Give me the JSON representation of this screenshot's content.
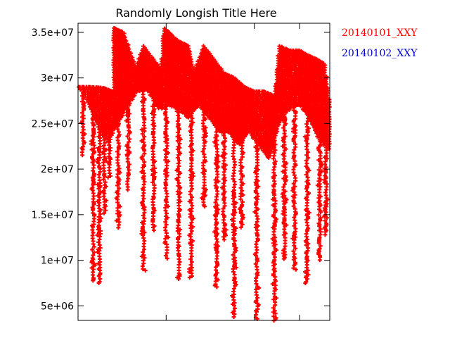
{
  "chart_data": {
    "type": "scatter",
    "title": "Randomly Longish Title Here",
    "xlabel": "",
    "ylabel": "",
    "xlim": [
      0,
      1
    ],
    "ylim": [
      3400000,
      36000000
    ],
    "xticks": [
      0,
      0.35,
      0.7,
      0.88
    ],
    "yticks": [
      5000000,
      10000000,
      15000000,
      20000000,
      25000000,
      30000000,
      35000000
    ],
    "ytick_labels": [
      "5e+06",
      "1e+07",
      "1.5e+07",
      "2e+07",
      "2.5e+07",
      "3e+07",
      "3.5e+07"
    ],
    "grid": false,
    "legend_position": "outside-right-top",
    "colors": {
      "series1": "#ff0000",
      "series2": "#0000cc"
    },
    "series": [
      {
        "name": "20140101_XXY",
        "marker": "plus",
        "upper": [
          [
            0.0,
            29000000
          ],
          [
            0.05,
            29000000
          ],
          [
            0.1,
            28900000
          ],
          [
            0.14,
            28500000
          ],
          [
            0.14,
            35500000
          ],
          [
            0.18,
            35000000
          ],
          [
            0.2,
            33500000
          ],
          [
            0.23,
            31000000
          ],
          [
            0.26,
            33500000
          ],
          [
            0.3,
            32000000
          ],
          [
            0.33,
            31000000
          ],
          [
            0.34,
            35500000
          ],
          [
            0.38,
            34500000
          ],
          [
            0.4,
            34000000
          ],
          [
            0.44,
            33500000
          ],
          [
            0.46,
            30500000
          ],
          [
            0.5,
            33500000
          ],
          [
            0.54,
            32000000
          ],
          [
            0.58,
            30500000
          ],
          [
            0.62,
            30000000
          ],
          [
            0.66,
            29000000
          ],
          [
            0.7,
            28500000
          ],
          [
            0.74,
            28500000
          ],
          [
            0.78,
            28000000
          ],
          [
            0.8,
            33500000
          ],
          [
            0.84,
            33000000
          ],
          [
            0.88,
            33000000
          ],
          [
            0.91,
            32500000
          ],
          [
            0.95,
            32000000
          ],
          [
            0.98,
            31500000
          ],
          [
            1.0,
            27000000
          ]
        ],
        "lower": [
          [
            0.0,
            29000000
          ],
          [
            0.03,
            28000000
          ],
          [
            0.06,
            26000000
          ],
          [
            0.09,
            24000000
          ],
          [
            0.12,
            23000000
          ],
          [
            0.14,
            24000000
          ],
          [
            0.16,
            25000000
          ],
          [
            0.2,
            27000000
          ],
          [
            0.24,
            28500000
          ],
          [
            0.28,
            28500000
          ],
          [
            0.32,
            26500000
          ],
          [
            0.36,
            27000000
          ],
          [
            0.4,
            26500000
          ],
          [
            0.44,
            25500000
          ],
          [
            0.48,
            27000000
          ],
          [
            0.52,
            25500000
          ],
          [
            0.56,
            24000000
          ],
          [
            0.6,
            24000000
          ],
          [
            0.64,
            22500000
          ],
          [
            0.68,
            24000000
          ],
          [
            0.72,
            22500000
          ],
          [
            0.76,
            21000000
          ],
          [
            0.8,
            25000000
          ],
          [
            0.84,
            26500000
          ],
          [
            0.88,
            27000000
          ],
          [
            0.92,
            25500000
          ],
          [
            0.96,
            23000000
          ],
          [
            1.0,
            22000000
          ]
        ],
        "dips": [
          [
            0.02,
            21500000
          ],
          [
            0.06,
            7500000
          ],
          [
            0.085,
            7500000
          ],
          [
            0.105,
            15000000
          ],
          [
            0.125,
            19000000
          ],
          [
            0.16,
            13500000
          ],
          [
            0.2,
            17500000
          ],
          [
            0.26,
            9000000
          ],
          [
            0.3,
            13000000
          ],
          [
            0.35,
            10000000
          ],
          [
            0.4,
            7700000
          ],
          [
            0.45,
            8000000
          ],
          [
            0.5,
            16000000
          ],
          [
            0.55,
            7000000
          ],
          [
            0.58,
            12000000
          ],
          [
            0.62,
            3500000
          ],
          [
            0.65,
            13500000
          ],
          [
            0.71,
            3500000
          ],
          [
            0.78,
            3500000
          ],
          [
            0.82,
            10000000
          ],
          [
            0.86,
            9000000
          ],
          [
            0.91,
            7500000
          ],
          [
            0.96,
            10000000
          ],
          [
            0.985,
            12500000
          ]
        ]
      },
      {
        "name": "20140102_XXY",
        "marker": "plus",
        "upper": [],
        "lower": [],
        "dips": []
      }
    ]
  }
}
